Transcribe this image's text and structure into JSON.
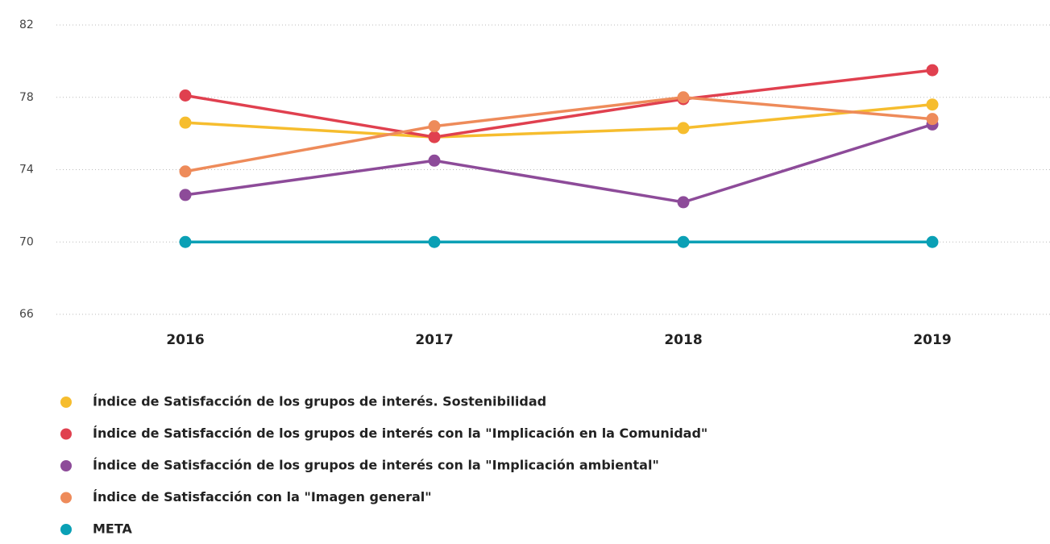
{
  "chart_data": {
    "type": "line",
    "categories": [
      "2016",
      "2017",
      "2018",
      "2019"
    ],
    "series": [
      {
        "name": "Índice de Satisfacción de los grupos de interés. Sostenibilidad",
        "color": "#f6bd2e",
        "values": [
          76.6,
          75.8,
          76.3,
          77.6
        ]
      },
      {
        "name": "Índice de Satisfacción de los grupos de interés con la \"Implicación en la Comunidad\"",
        "color": "#e0404f",
        "values": [
          78.1,
          75.8,
          77.9,
          79.5
        ]
      },
      {
        "name": "Índice de Satisfacción de los grupos de interés con la \"Implicación ambiental\"",
        "color": "#8d4b99",
        "values": [
          72.6,
          74.5,
          72.2,
          76.5
        ]
      },
      {
        "name": "Índice de Satisfacción con la \"Imagen general\"",
        "color": "#ee8b5a",
        "values": [
          73.9,
          76.4,
          78.0,
          76.8
        ]
      },
      {
        "name": "META",
        "color": "#0aa0b5",
        "values": [
          70,
          70,
          70,
          70
        ]
      }
    ],
    "ylim": [
      66,
      82
    ],
    "yticks": [
      66,
      70,
      74,
      78,
      82
    ],
    "grid": true
  }
}
